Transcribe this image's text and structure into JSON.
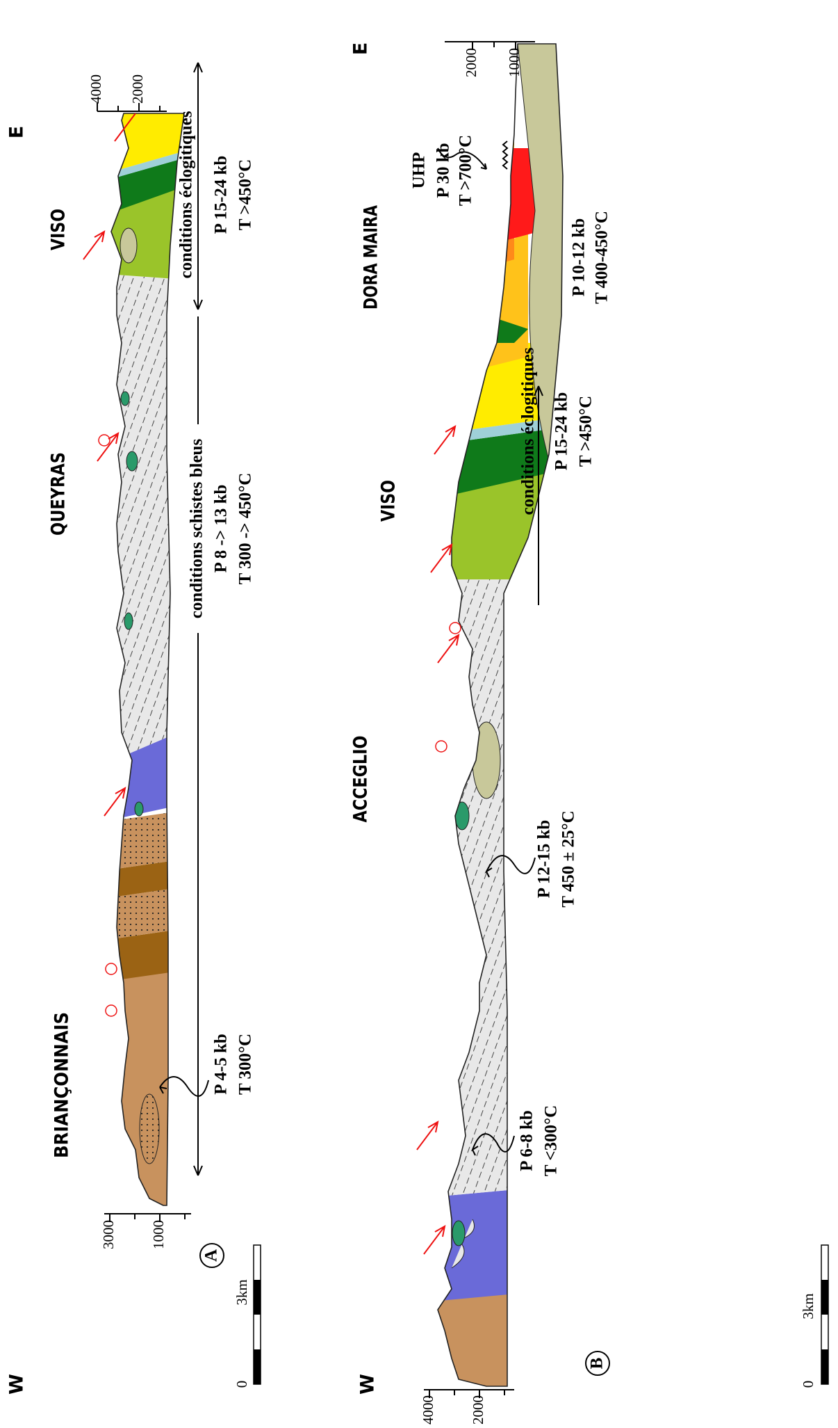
{
  "section_a": {
    "label": "A",
    "west": "W",
    "east": "E",
    "regions": [
      "BRIANÇONNAIS",
      "QUEYRAS",
      "VISO"
    ],
    "left_axis": [
      "3000",
      "1000"
    ],
    "right_axis": [
      "4000",
      "2000"
    ],
    "scale": [
      "0",
      "3km"
    ],
    "annotations": [
      {
        "lines": [
          "P 4-5 kb",
          "T  300°C"
        ]
      },
      {
        "lines": [
          "conditions schistes bleus",
          "P 8 -> 13 kb",
          "T 300 -> 450°C"
        ]
      },
      {
        "lines": [
          "conditions éclogitiques",
          "P 15-24 kb",
          "T >450°C"
        ]
      }
    ]
  },
  "section_b": {
    "label": "B",
    "west": "W",
    "east": "E",
    "regions": [
      "ACCEGLIO",
      "VISO",
      "DORA MAIRA"
    ],
    "left_axis": [
      "4000",
      "2000"
    ],
    "right_axis": [
      "2000",
      "1000"
    ],
    "scale": [
      "0",
      "3km"
    ],
    "annotations": [
      {
        "lines": [
          "P 6-8 kb",
          "T <300°C"
        ]
      },
      {
        "lines": [
          "P 12-15 kb",
          "T 450 ± 25°C"
        ]
      },
      {
        "lines": [
          "conditions éclogitiques",
          "P 15-24 kb",
          "T >450°C"
        ]
      },
      {
        "lines": [
          "UHP",
          "P   30 kb",
          "T >700°C"
        ]
      },
      {
        "lines": [
          "P 10-12 kb",
          "T 400-450°C"
        ]
      }
    ]
  }
}
